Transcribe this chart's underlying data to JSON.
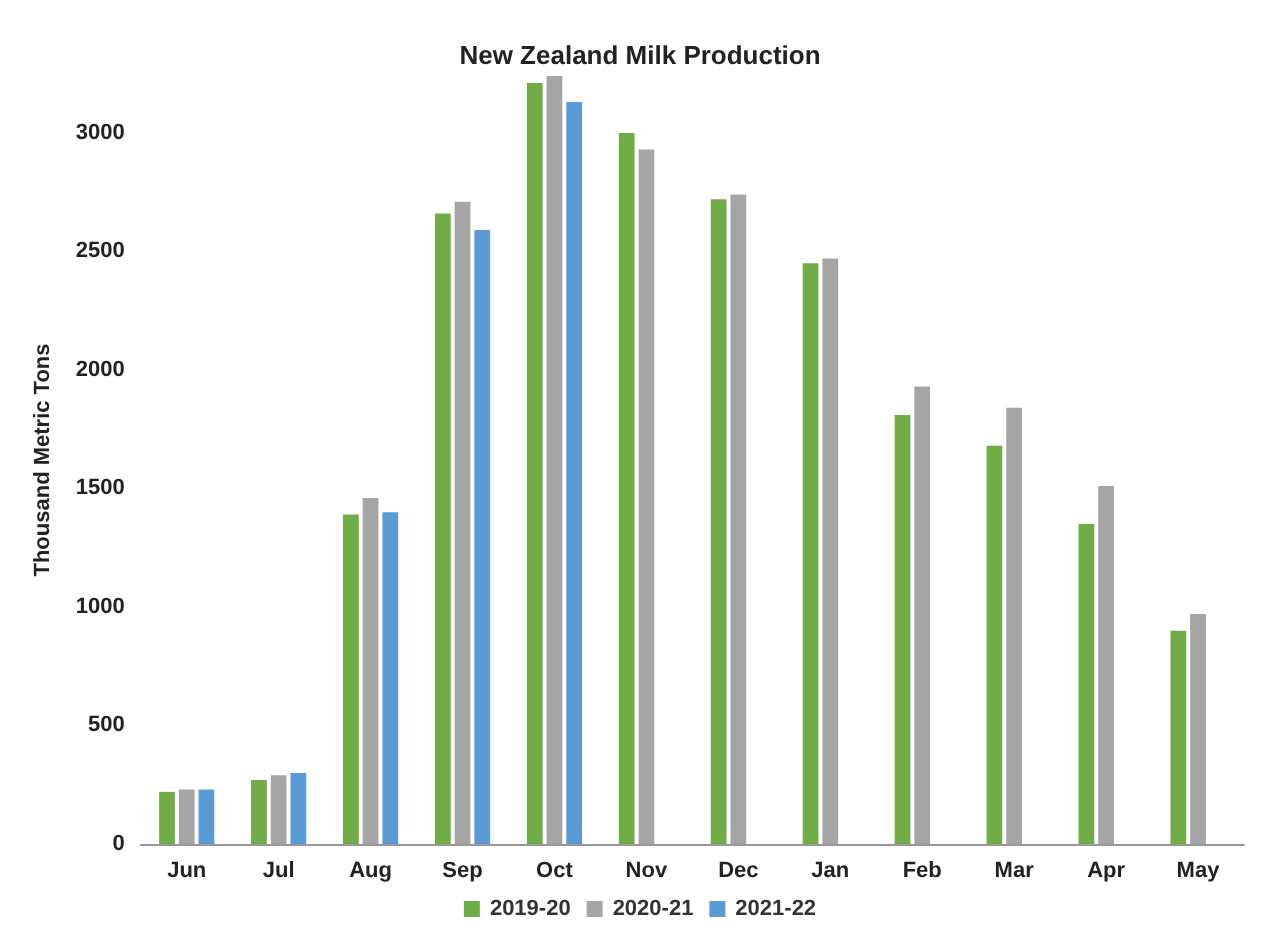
{
  "chart_data": {
    "type": "bar",
    "title": "New Zealand Milk Production",
    "ylabel": "Thousand Metric Tons",
    "categories": [
      "Jun",
      "Jul",
      "Aug",
      "Sep",
      "Oct",
      "Nov",
      "Dec",
      "Jan",
      "Feb",
      "Mar",
      "Apr",
      "May"
    ],
    "series": [
      {
        "name": "2019-20",
        "color": "#70ad47",
        "values": [
          220,
          270,
          1390,
          2660,
          3210,
          3000,
          2720,
          2450,
          1810,
          1680,
          1350,
          900
        ]
      },
      {
        "name": "2020-21",
        "color": "#a5a5a5",
        "values": [
          230,
          290,
          1460,
          2710,
          3240,
          2930,
          2740,
          2470,
          1930,
          1840,
          1510,
          970
        ]
      },
      {
        "name": "2021-22",
        "color": "#5b9bd5",
        "values": [
          230,
          300,
          1400,
          2590,
          3130,
          null,
          null,
          null,
          null,
          null,
          null,
          null
        ]
      }
    ],
    "ylim": [
      0,
      3240
    ],
    "yticks": [
      0,
      500,
      1000,
      1500,
      2000,
      2500,
      3000
    ],
    "grid": false,
    "legend": "bottom"
  }
}
